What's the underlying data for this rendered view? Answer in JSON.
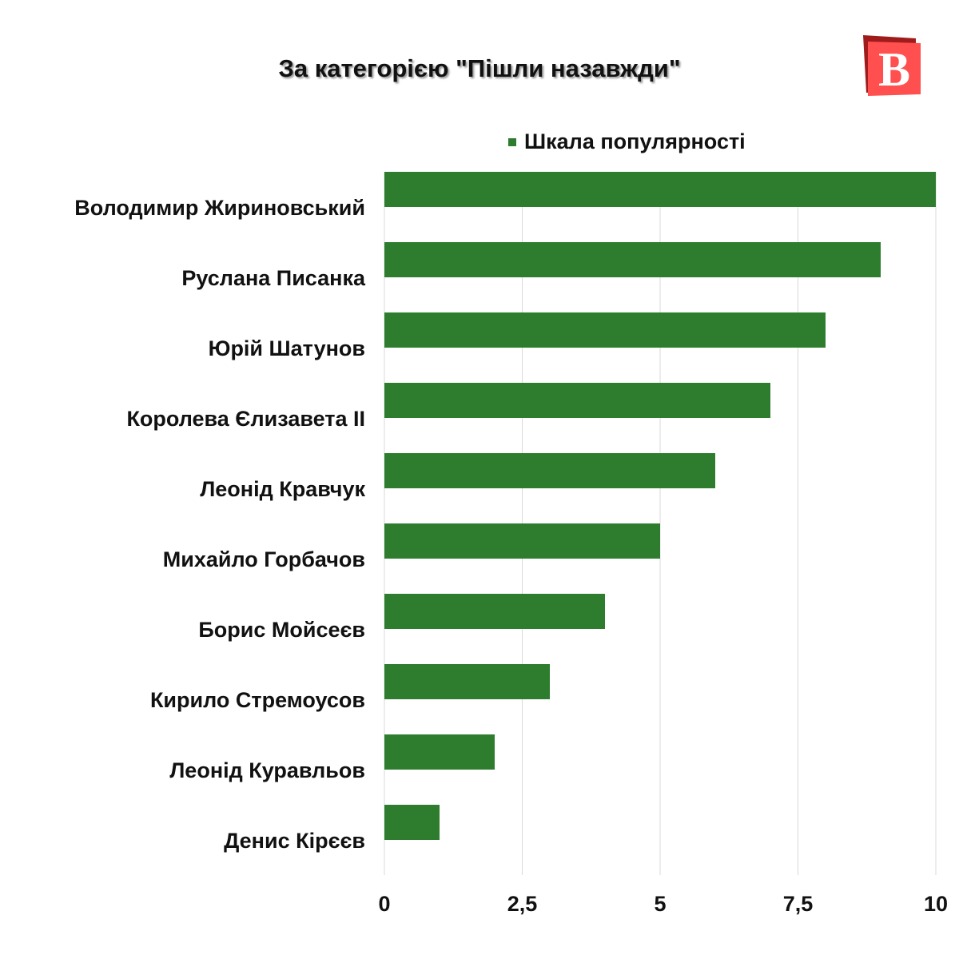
{
  "logo": {
    "text": "B",
    "colors": {
      "front": "#ff4f4f",
      "back": "#a01c1c"
    }
  },
  "chart_data": {
    "type": "bar",
    "orientation": "horizontal",
    "title": "За категорією \"Пішли назавжди\"",
    "categories": [
      "Володимир Жириновський",
      "Руслана Писанка",
      "Юрій Шатунов",
      "Королева Єлизавета II",
      "Леонід Кравчук",
      "Михайло Горбачов",
      "Борис Мойсеєв",
      "Кирило Стремоусов",
      "Леонід Куравльов",
      "Денис Кірєєв"
    ],
    "series": [
      {
        "name": "Шкала популярності",
        "values": [
          10,
          9,
          8,
          7,
          6,
          5,
          4,
          3,
          2,
          1
        ],
        "color": "#2e7d2e"
      }
    ],
    "xlim": [
      0,
      10
    ],
    "xticks": [
      0,
      2.5,
      5,
      7.5,
      10
    ],
    "xtick_labels": [
      "0",
      "2,5",
      "5",
      "7,5",
      "10"
    ],
    "grid": true,
    "legend_position": "top-right"
  }
}
